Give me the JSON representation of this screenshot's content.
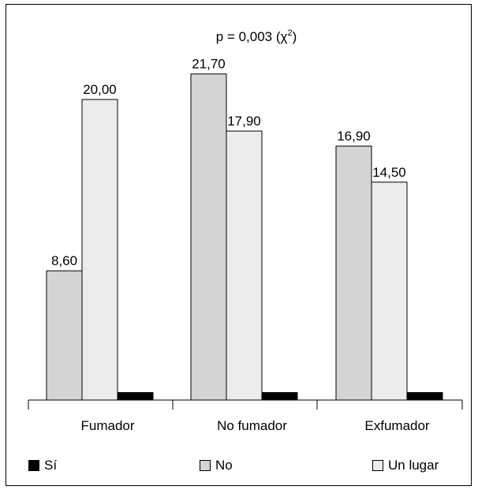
{
  "chart_data": {
    "type": "bar",
    "title_prefix": "p = 0,003 (",
    "title_chi": "χ",
    "title_sup": "2",
    "title_suffix": ")",
    "categories": [
      "Fumador",
      "No fumador",
      "Exfumador"
    ],
    "series": [
      {
        "name": "Sí",
        "color": "#000000",
        "values": [
          0.5,
          0.5,
          0.5
        ],
        "labels": [
          "",
          "",
          ""
        ]
      },
      {
        "name": "No",
        "color": "#d4d4d4",
        "values": [
          8.6,
          21.7,
          16.9
        ],
        "labels": [
          "8,60",
          "21,70",
          "16,90"
        ]
      },
      {
        "name": "Un lugar",
        "color": "#ececec",
        "values": [
          20.0,
          17.9,
          14.5
        ],
        "labels": [
          "20,00",
          "17,90",
          "14,50"
        ]
      }
    ],
    "ylim": [
      0,
      22
    ],
    "xlabel": "",
    "ylabel": "",
    "grid": false,
    "legend_position": "bottom"
  }
}
